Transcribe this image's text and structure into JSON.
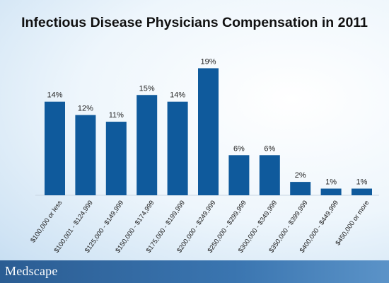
{
  "title": "Infectious Disease Physicians Compensation in 2011",
  "logo": "Medscape",
  "colors": {
    "bar": "#0f5a9c",
    "footer": "#2b5d93"
  },
  "chart_data": {
    "type": "bar",
    "title": "Infectious Disease Physicians Compensation in 2011",
    "categories": [
      "$100,000 or less",
      "$100,001 - $124,999",
      "$125,000 - $149,999",
      "$150,000 - $174,999",
      "$175,000 - $199,999",
      "$200,000 - $249,999",
      "$250,000 - $299,999",
      "$300,000 - $349,999",
      "$350,000 - $399,999",
      "$400,000 - $449,999",
      "$450,000 or more"
    ],
    "values": [
      14,
      12,
      11,
      15,
      14,
      19,
      6,
      6,
      2,
      1,
      1
    ],
    "value_labels": [
      "14%",
      "12%",
      "11%",
      "15%",
      "14%",
      "19%",
      "6%",
      "6%",
      "2%",
      "1%",
      "1%"
    ],
    "xlabel": "",
    "ylabel": "",
    "ylim": [
      0,
      20
    ],
    "grid": false,
    "legend": "none"
  }
}
